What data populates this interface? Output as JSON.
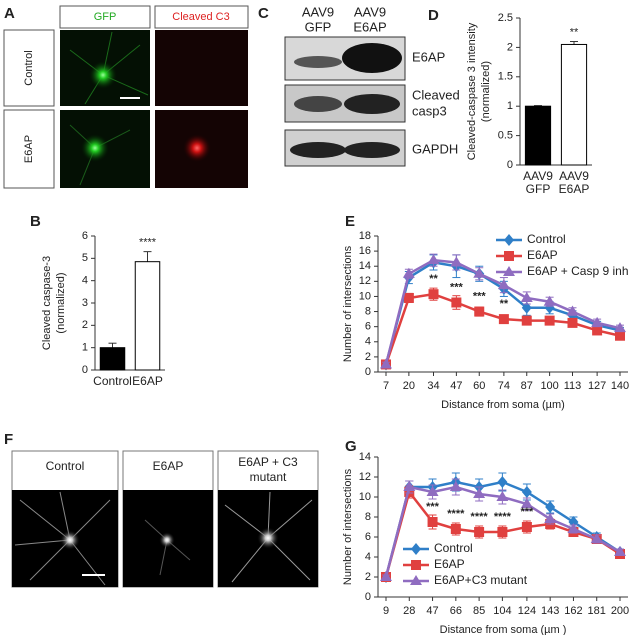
{
  "figure": {
    "A": {
      "label": "A",
      "columns": [
        "GFP",
        "Cleaved C3"
      ],
      "rows": [
        "Control",
        "E6AP"
      ]
    },
    "C": {
      "label": "C",
      "lanes": [
        [
          "AAV9",
          "GFP"
        ],
        [
          "AAV9",
          "E6AP"
        ]
      ],
      "bands": [
        [
          "E6AP"
        ],
        [
          "Cleaved",
          "casp3"
        ],
        [
          "GAPDH"
        ]
      ]
    },
    "F": {
      "label": "F",
      "columns": [
        [
          "Control"
        ],
        [
          "E6AP"
        ],
        [
          "E6AP + C3",
          "mutant"
        ]
      ]
    }
  },
  "chart_data": [
    {
      "label": "B",
      "type": "bar",
      "categories": [
        [
          "Control"
        ],
        [
          "E6AP"
        ]
      ],
      "values": [
        1.0,
        4.85
      ],
      "errors": [
        0.2,
        0.45
      ],
      "colors": [
        "#000000",
        "#ffffff"
      ],
      "ylabel": [
        "Cleaved caspase-3",
        "(normalized)"
      ],
      "ylim": [
        0,
        6
      ],
      "yticks": [
        0,
        1,
        2,
        3,
        4,
        5,
        6
      ],
      "annotations": [
        {
          "category": "E6AP",
          "text": "****"
        }
      ]
    },
    {
      "label": "D",
      "type": "bar",
      "categories": [
        [
          "AAV9",
          "GFP"
        ],
        [
          "AAV9",
          "E6AP"
        ]
      ],
      "values": [
        1.0,
        2.05
      ],
      "errors": [
        0.01,
        0.05
      ],
      "colors": [
        "#000000",
        "#ffffff"
      ],
      "ylabel": [
        "Cleaved-caspase 3 intensity",
        "(normalized)"
      ],
      "ylim": [
        0,
        2.5
      ],
      "yticks": [
        0,
        0.5,
        1,
        1.5,
        2,
        2.5
      ],
      "annotations": [
        {
          "category": "AAV9 E6AP",
          "text": "**"
        }
      ]
    },
    {
      "label": "E",
      "type": "line",
      "x": [
        7,
        20,
        34,
        47,
        60,
        74,
        87,
        100,
        113,
        127,
        140
      ],
      "xlim": [
        7,
        140
      ],
      "xticks": [
        7,
        20,
        34,
        47,
        60,
        74,
        87,
        100,
        113,
        127,
        140
      ],
      "ylim": [
        0,
        18
      ],
      "yticks": [
        0,
        2,
        4,
        6,
        8,
        10,
        12,
        14,
        16,
        18
      ],
      "xlabel": "Distance from soma (µm)",
      "ylabel": [
        "Number of intersections"
      ],
      "legend": "upper right",
      "series": [
        {
          "name": "Control",
          "color": "#2f7fc8",
          "marker": "diamond",
          "values": [
            1,
            12.5,
            14.5,
            14,
            13,
            11,
            8.5,
            8.5,
            7.5,
            6.2,
            5.5
          ],
          "errors": [
            0.3,
            0.8,
            1,
            1.5,
            1,
            1,
            1,
            0.8,
            0.6,
            0.5,
            0.4
          ]
        },
        {
          "name": "E6AP",
          "color": "#e0403f",
          "marker": "square",
          "values": [
            1,
            9.8,
            10.3,
            9.2,
            8,
            7,
            6.8,
            6.8,
            6.5,
            5.5,
            4.8
          ],
          "errors": [
            0.3,
            0.6,
            0.8,
            0.9,
            0.6,
            0.5,
            0.5,
            0.5,
            0.5,
            0.4,
            0.4
          ]
        },
        {
          "name": "E6AP + Casp 9 inh",
          "color": "#8f6cc0",
          "marker": "triangle",
          "values": [
            1,
            13,
            14.8,
            14.5,
            13,
            11.5,
            9.8,
            9.3,
            8,
            6.5,
            5.8
          ],
          "errors": [
            0.3,
            0.6,
            0.8,
            1,
            0.8,
            1,
            0.8,
            0.6,
            0.5,
            0.5,
            0.4
          ]
        }
      ],
      "annotations": [
        {
          "x": 34,
          "text": "**"
        },
        {
          "x": 47,
          "text": "***"
        },
        {
          "x": 60,
          "text": "***"
        },
        {
          "x": 74,
          "text": "**"
        }
      ]
    },
    {
      "label": "G",
      "type": "line",
      "x": [
        9,
        28,
        47,
        66,
        85,
        104,
        124,
        143,
        162,
        181,
        200
      ],
      "xlim": [
        9,
        200
      ],
      "xticks": [
        9,
        28,
        47,
        66,
        85,
        104,
        124,
        143,
        162,
        181,
        200
      ],
      "ylim": [
        0,
        14
      ],
      "yticks": [
        0,
        2,
        4,
        6,
        8,
        10,
        12,
        14
      ],
      "xlabel": "Distance from soma (µm )",
      "ylabel": [
        "Number of intersections"
      ],
      "legend": "lower left",
      "series": [
        {
          "name": "Control",
          "color": "#2f7fc8",
          "marker": "diamond",
          "values": [
            2,
            11,
            11,
            11.5,
            11,
            11.5,
            10.5,
            9,
            7.5,
            6,
            4.5
          ],
          "errors": [
            0.2,
            0.6,
            0.8,
            0.9,
            0.8,
            0.9,
            0.8,
            0.6,
            0.5,
            0.4,
            0.3
          ]
        },
        {
          "name": "E6AP",
          "color": "#e0403f",
          "marker": "square",
          "values": [
            2,
            10.5,
            7.5,
            6.8,
            6.5,
            6.5,
            7,
            7.3,
            6.5,
            5.8,
            4.3
          ],
          "errors": [
            0.2,
            0.6,
            0.7,
            0.6,
            0.6,
            0.6,
            0.6,
            0.5,
            0.4,
            0.4,
            0.3
          ]
        },
        {
          "name": "E6AP+C3 mutant",
          "color": "#8f6cc0",
          "marker": "triangle",
          "values": [
            2,
            11,
            10.5,
            11,
            10.3,
            10,
            9.3,
            7.8,
            6.8,
            5.8,
            4.5
          ],
          "errors": [
            0.2,
            0.6,
            0.7,
            0.8,
            0.7,
            0.7,
            0.6,
            0.5,
            0.4,
            0.4,
            0.3
          ]
        }
      ],
      "annotations": [
        {
          "x": 47,
          "text": "***"
        },
        {
          "x": 66,
          "text": "****"
        },
        {
          "x": 85,
          "text": "****"
        },
        {
          "x": 104,
          "text": "****"
        },
        {
          "x": 124,
          "text": "***"
        }
      ]
    }
  ]
}
